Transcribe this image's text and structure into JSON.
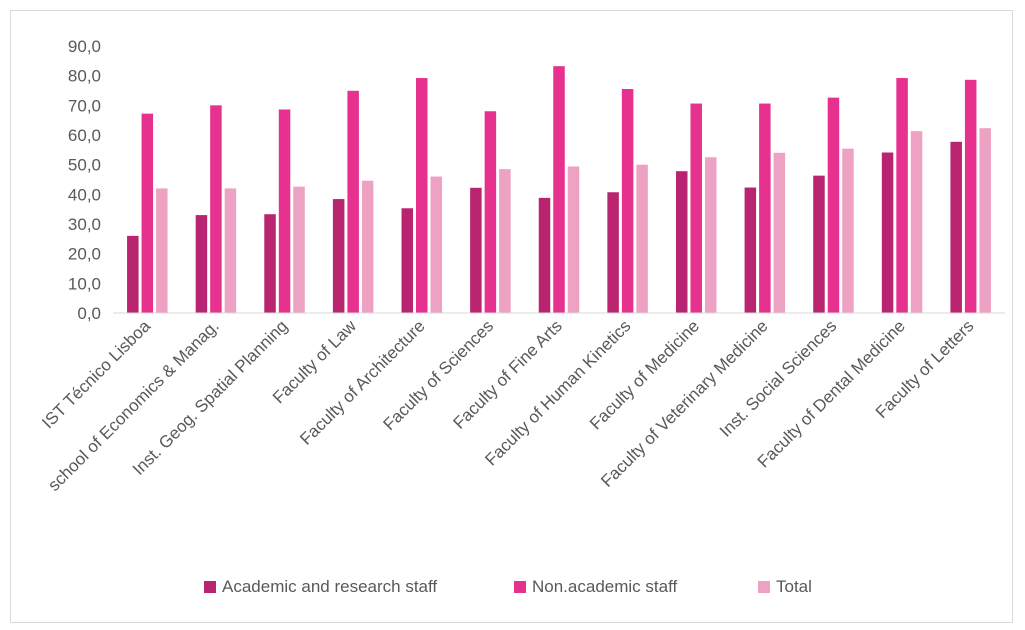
{
  "chart_data": {
    "type": "bar",
    "title": "",
    "xlabel": "",
    "ylabel": "",
    "ylim": [
      0,
      90
    ],
    "yticks": [
      "0,0",
      "10,0",
      "20,0",
      "30,0",
      "40,0",
      "50,0",
      "60,0",
      "70,0",
      "80,0",
      "90,0"
    ],
    "grid": false,
    "legend_position": "bottom",
    "categories": [
      "IST Técnico Lisboa",
      "school of Economics & Manag.",
      "Inst. Geog. Spatial Planning",
      "Faculty of Law",
      "Faculty of Architecture",
      "Faculty of Sciences",
      "Faculty of Fine Arts",
      "Faculty of Human Kinetics",
      "Faculty of Medicine",
      "Faculty of Veterinary Medicine",
      "Inst. Social Sciences",
      "Faculty of Dental Medicine",
      "Faculty of Letters"
    ],
    "series": [
      {
        "name": "Academic and research staff",
        "color": "#b8246f",
        "values": [
          26.0,
          33.0,
          33.3,
          38.4,
          35.3,
          42.2,
          38.8,
          40.7,
          47.8,
          42.3,
          46.3,
          54.1,
          57.7
        ]
      },
      {
        "name": "Non.academic staff",
        "color": "#e6318f",
        "values": [
          67.2,
          70.0,
          68.6,
          74.9,
          79.2,
          68.0,
          83.2,
          75.5,
          70.6,
          70.6,
          72.6,
          79.2,
          78.6
        ]
      },
      {
        "name": "Total",
        "color": "#eea2c3",
        "values": [
          42.0,
          42.0,
          42.6,
          44.6,
          46.0,
          48.5,
          49.4,
          50.0,
          52.5,
          54.0,
          55.4,
          61.3,
          62.3
        ]
      }
    ]
  }
}
